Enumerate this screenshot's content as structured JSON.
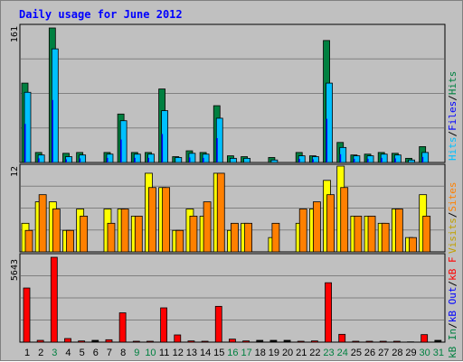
{
  "chart_title": "Daily usage for June 2012",
  "colors": {
    "background": "#c0c0c0",
    "title": "#0000ff",
    "hits": "#008040",
    "files": "#00c0ff",
    "files_inner": "#0000ff",
    "sites": "#ff8000",
    "visits": "#ffff00",
    "kbf": "#ff0000",
    "kbin": "#0000ff",
    "kbout": "#008040",
    "weekend_label": "#008040",
    "weekday_label": "#000000"
  },
  "chart_data": [
    {
      "type": "bar",
      "panel": "hits-files",
      "y_max_label": "161",
      "ylim": [
        0,
        161
      ],
      "categories": [
        "1",
        "2",
        "3",
        "4",
        "5",
        "6",
        "7",
        "8",
        "9",
        "10",
        "11",
        "12",
        "13",
        "14",
        "15",
        "16",
        "17",
        "18",
        "19",
        "20",
        "21",
        "22",
        "23",
        "24",
        "25",
        "26",
        "27",
        "28",
        "29",
        "30",
        "31"
      ],
      "series": [
        {
          "name": "Hits",
          "values": [
            95,
            12,
            161,
            11,
            12,
            0,
            12,
            58,
            12,
            12,
            88,
            7,
            14,
            12,
            68,
            8,
            7,
            0,
            6,
            0,
            12,
            8,
            146,
            24,
            9,
            10,
            12,
            11,
            5,
            19,
            0
          ]
        },
        {
          "name": "Files",
          "values": [
            84,
            9,
            136,
            7,
            9,
            0,
            10,
            50,
            10,
            10,
            62,
            6,
            11,
            10,
            53,
            5,
            5,
            0,
            3,
            0,
            8,
            7,
            95,
            18,
            8,
            8,
            10,
            9,
            3,
            12,
            0
          ]
        }
      ],
      "legend": [
        "Hits",
        "/",
        "Files",
        "/",
        "Hits"
      ]
    },
    {
      "type": "bar",
      "panel": "sites-visits",
      "y_max_label": "12",
      "ylim": [
        0,
        12
      ],
      "categories": [
        "1",
        "2",
        "3",
        "4",
        "5",
        "6",
        "7",
        "8",
        "9",
        "10",
        "11",
        "12",
        "13",
        "14",
        "15",
        "16",
        "17",
        "18",
        "19",
        "20",
        "21",
        "22",
        "23",
        "24",
        "25",
        "26",
        "27",
        "28",
        "29",
        "30",
        "31"
      ],
      "series": [
        {
          "name": "Visits",
          "values": [
            4,
            7,
            7,
            3,
            6,
            0,
            6,
            6,
            5,
            11,
            9,
            3,
            6,
            5,
            11,
            3,
            4,
            0,
            2,
            0,
            4,
            6,
            10,
            12,
            5,
            5,
            4,
            6,
            2,
            8,
            0
          ]
        },
        {
          "name": "Sites",
          "values": [
            3,
            8,
            6,
            3,
            5,
            0,
            4,
            6,
            5,
            9,
            9,
            3,
            5,
            7,
            11,
            4,
            4,
            0,
            4,
            0,
            6,
            7,
            8,
            9,
            5,
            5,
            4,
            6,
            2,
            5,
            0
          ]
        }
      ],
      "legend": [
        "Visits",
        "/",
        "Sites"
      ]
    },
    {
      "type": "bar",
      "panel": "kbytes",
      "y_max_label": "5643",
      "ylim": [
        0,
        5643
      ],
      "categories": [
        "1",
        "2",
        "3",
        "4",
        "5",
        "6",
        "7",
        "8",
        "9",
        "10",
        "11",
        "12",
        "13",
        "14",
        "15",
        "16",
        "17",
        "18",
        "19",
        "20",
        "21",
        "22",
        "23",
        "24",
        "25",
        "26",
        "27",
        "28",
        "29",
        "30",
        "31"
      ],
      "series": [
        {
          "name": "KBytes F",
          "values": [
            3600,
            120,
            5643,
            240,
            80,
            0,
            160,
            1950,
            60,
            60,
            2280,
            480,
            80,
            60,
            2380,
            200,
            80,
            0,
            0,
            0,
            60,
            80,
            3950,
            520,
            60,
            60,
            60,
            60,
            20,
            500,
            0
          ]
        }
      ],
      "legend": [
        "kB In",
        "/",
        "kB Out",
        "/",
        "kB F"
      ]
    }
  ],
  "x_labels": [
    {
      "text": "1",
      "weekend": false
    },
    {
      "text": "2",
      "weekend": false
    },
    {
      "text": "3",
      "weekend": true
    },
    {
      "text": "4",
      "weekend": false
    },
    {
      "text": "5",
      "weekend": false
    },
    {
      "text": "6",
      "weekend": false
    },
    {
      "text": "7",
      "weekend": false
    },
    {
      "text": "8",
      "weekend": false
    },
    {
      "text": "9",
      "weekend": true
    },
    {
      "text": "10",
      "weekend": true
    },
    {
      "text": "11",
      "weekend": false
    },
    {
      "text": "12",
      "weekend": false
    },
    {
      "text": "13",
      "weekend": false
    },
    {
      "text": "14",
      "weekend": false
    },
    {
      "text": "15",
      "weekend": false
    },
    {
      "text": "16",
      "weekend": true
    },
    {
      "text": "17",
      "weekend": true
    },
    {
      "text": "18",
      "weekend": false
    },
    {
      "text": "19",
      "weekend": false
    },
    {
      "text": "20",
      "weekend": false
    },
    {
      "text": "21",
      "weekend": false
    },
    {
      "text": "22",
      "weekend": false
    },
    {
      "text": "23",
      "weekend": true
    },
    {
      "text": "24",
      "weekend": true
    },
    {
      "text": "25",
      "weekend": false
    },
    {
      "text": "26",
      "weekend": false
    },
    {
      "text": "27",
      "weekend": false
    },
    {
      "text": "28",
      "weekend": false
    },
    {
      "text": "29",
      "weekend": false
    },
    {
      "text": "30",
      "weekend": true
    },
    {
      "text": "31",
      "weekend": true
    }
  ]
}
